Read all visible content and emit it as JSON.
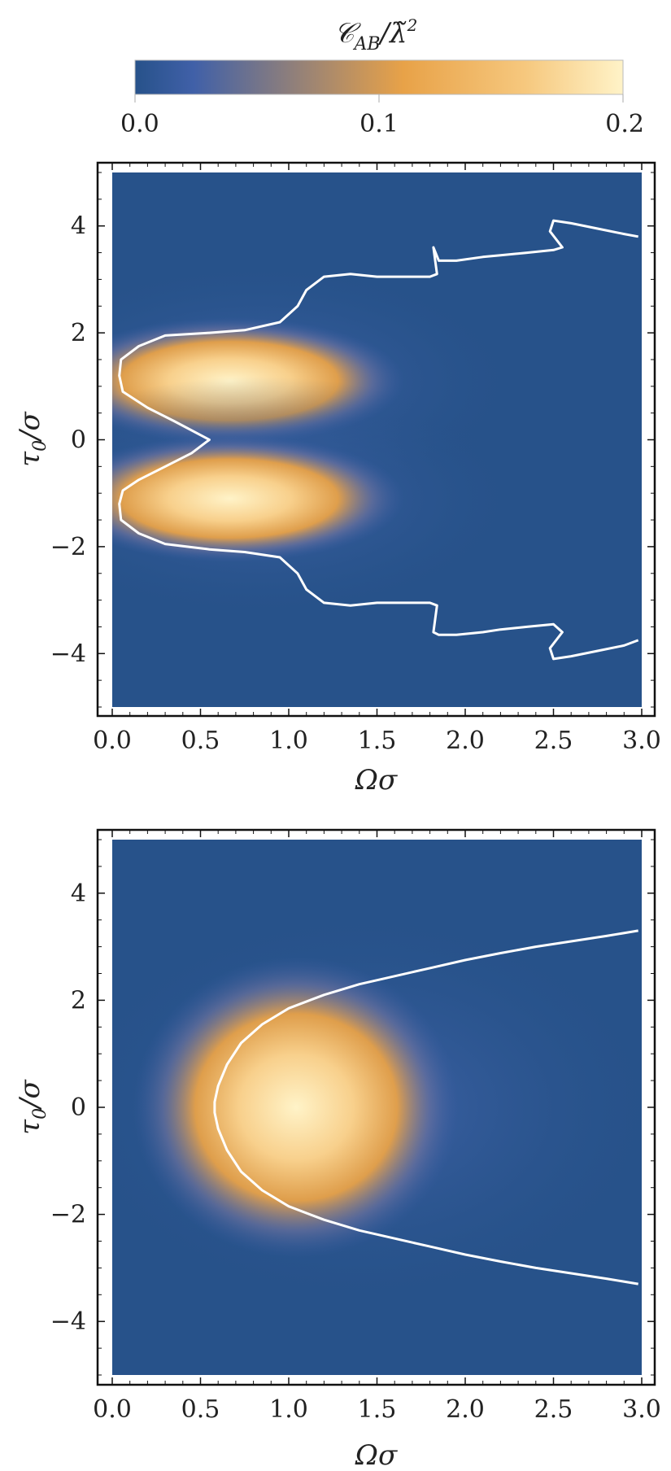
{
  "colorbar": {
    "label": "𝒞AB/λ̃²",
    "label_main": "𝒞",
    "label_sub": "AB",
    "label_tail": "/λ̃",
    "label_sup": "2",
    "ticks": [
      "0.0",
      "0.1",
      "0.2"
    ],
    "range": [
      0.0,
      0.2
    ],
    "colors": [
      "#27528a",
      "#4060a8",
      "#e8a248",
      "#f6c87e",
      "#fff3c8"
    ]
  },
  "chart_data": [
    {
      "type": "heatmap",
      "panel": "top",
      "xlabel": "Ωσ",
      "ylabel": "τ0/σ",
      "ylabel_main": "τ",
      "ylabel_sub": "0",
      "ylabel_tail": "/σ",
      "xlim": [
        0.0,
        3.0
      ],
      "ylim": [
        -5.0,
        5.0
      ],
      "xticks": [
        "0.0",
        "0.5",
        "1.0",
        "1.5",
        "2.0",
        "2.5",
        "3.0"
      ],
      "yticks": [
        "−4",
        "−2",
        "0",
        "2",
        "4"
      ],
      "ytick_values": [
        -4,
        -2,
        0,
        2,
        4
      ],
      "peaks": [
        {
          "x": 0.55,
          "y": 1.1,
          "value": 0.2
        },
        {
          "x": 0.55,
          "y": -1.1,
          "value": 0.2
        }
      ],
      "contour_x": [
        2.98,
        2.9,
        2.75,
        2.6,
        2.5,
        2.48,
        2.55,
        2.5,
        2.35,
        2.2,
        2.1,
        1.95,
        1.85,
        1.82,
        1.84,
        1.8,
        1.7,
        1.5,
        1.35,
        1.2,
        1.1,
        1.05,
        0.95,
        0.75,
        0.55,
        0.3,
        0.15,
        0.05,
        0.04,
        0.06,
        0.2,
        0.35,
        0.55,
        0.45,
        0.3,
        0.15,
        0.06,
        0.04,
        0.05,
        0.15,
        0.3,
        0.55,
        0.75,
        0.95,
        1.05,
        1.1,
        1.2,
        1.35,
        1.5,
        1.7,
        1.8,
        1.84,
        1.82,
        1.85,
        1.95,
        2.1,
        2.2,
        2.35,
        2.5,
        2.55,
        2.48,
        2.5,
        2.6,
        2.75,
        2.9,
        2.98
      ],
      "contour_y": [
        3.8,
        3.85,
        3.95,
        4.05,
        4.1,
        3.9,
        3.6,
        3.55,
        3.5,
        3.45,
        3.42,
        3.35,
        3.35,
        3.6,
        3.1,
        3.05,
        3.05,
        3.05,
        3.1,
        3.05,
        2.8,
        2.5,
        2.2,
        2.05,
        2.0,
        1.95,
        1.75,
        1.5,
        1.2,
        0.9,
        0.6,
        0.35,
        0.0,
        -0.25,
        -0.5,
        -0.75,
        -0.95,
        -1.2,
        -1.5,
        -1.75,
        -1.95,
        -2.05,
        -2.1,
        -2.2,
        -2.5,
        -2.8,
        -3.05,
        -3.1,
        -3.05,
        -3.05,
        -3.05,
        -3.1,
        -3.6,
        -3.65,
        -3.65,
        -3.6,
        -3.55,
        -3.5,
        -3.45,
        -3.6,
        -3.9,
        -4.1,
        -4.05,
        -3.95,
        -3.85,
        -3.75
      ]
    },
    {
      "type": "heatmap",
      "panel": "bottom",
      "xlabel": "Ωσ",
      "ylabel": "τ0/σ",
      "ylabel_main": "τ",
      "ylabel_sub": "0",
      "ylabel_tail": "/σ",
      "xlim": [
        0.0,
        3.0
      ],
      "ylim": [
        -5.0,
        5.0
      ],
      "xticks": [
        "0.0",
        "0.5",
        "1.0",
        "1.5",
        "2.0",
        "2.5",
        "3.0"
      ],
      "yticks": [
        "−4",
        "−2",
        "0",
        "2",
        "4"
      ],
      "ytick_values": [
        -4,
        -2,
        0,
        2,
        4
      ],
      "peaks": [
        {
          "x": 0.95,
          "y": 0.0,
          "value": 0.2
        }
      ],
      "contour_x": [
        2.98,
        2.8,
        2.6,
        2.4,
        2.2,
        2.0,
        1.8,
        1.6,
        1.4,
        1.2,
        1.0,
        0.85,
        0.73,
        0.65,
        0.6,
        0.58,
        0.58,
        0.6,
        0.65,
        0.73,
        0.85,
        1.0,
        1.2,
        1.4,
        1.6,
        1.8,
        2.0,
        2.2,
        2.4,
        2.6,
        2.8,
        2.98
      ],
      "contour_y": [
        3.3,
        3.2,
        3.1,
        3.0,
        2.88,
        2.75,
        2.6,
        2.45,
        2.3,
        2.1,
        1.85,
        1.55,
        1.2,
        0.8,
        0.4,
        0.1,
        -0.1,
        -0.4,
        -0.8,
        -1.2,
        -1.55,
        -1.85,
        -2.1,
        -2.3,
        -2.45,
        -2.6,
        -2.75,
        -2.88,
        -3.0,
        -3.1,
        -3.2,
        -3.3
      ]
    }
  ]
}
